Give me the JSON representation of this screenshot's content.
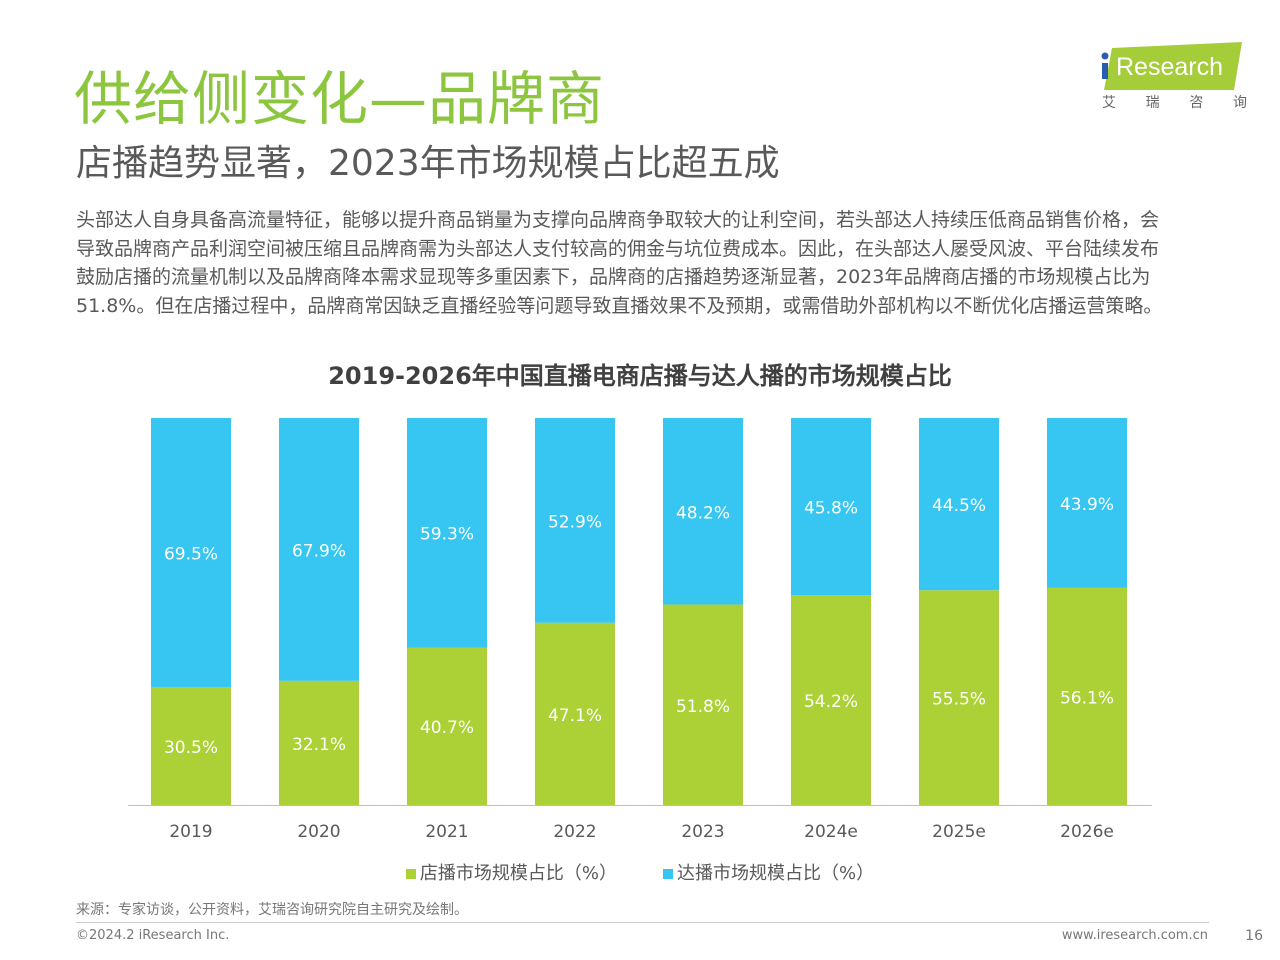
{
  "header": {
    "title": "供给侧变化—品牌商",
    "subtitle": "店播趋势显著，2023年市场规模占比超五成"
  },
  "logo": {
    "text": "iResearch",
    "cn_chars": [
      "艾",
      "瑞",
      "咨",
      "询"
    ]
  },
  "paragraph_lines": [
    "头部达人自身具备高流量特征，能够以提升商品销量为支撑向品牌商争取较大的让利空间，若头部达人持续压低商品销售价格，会",
    "导致品牌商产品利润空间被压缩且品牌商需为头部达人支付较高的佣金与坑位费成本。因此，在头部达人屡受风波、平台陆续发布",
    "鼓励店播的流量机制以及品牌商降本需求显现等多重因素下，品牌商的店播趋势逐渐显著，2023年品牌商店播的市场规模占比为",
    "51.8%。但在店播过程中，品牌商常因缺乏直播经验等问题导致直播效果不及预期，或需借助外部机构以不断优化店播运营策略。"
  ],
  "chart_data": {
    "type": "bar",
    "stacked": true,
    "title": "2019-2026年中国直播电商店播与达人播的市场规模占比",
    "categories": [
      "2019",
      "2020",
      "2021",
      "2022",
      "2023",
      "2024e",
      "2025e",
      "2026e"
    ],
    "series": [
      {
        "name": "店播市场规模占比（%）",
        "color": "#acd136",
        "values": [
          30.5,
          32.1,
          40.7,
          47.1,
          51.8,
          54.2,
          55.5,
          56.1
        ]
      },
      {
        "name": "达播市场规模占比（%）",
        "color": "#36c6f1",
        "values": [
          69.5,
          67.9,
          59.3,
          52.9,
          48.2,
          45.8,
          44.5,
          43.9
        ]
      }
    ],
    "ylim": [
      0,
      100
    ],
    "grid": false,
    "legend": "bottom"
  },
  "footer": {
    "source": "来源：专家访谈，公开资料，艾瑞咨询研究院自主研究及绘制。",
    "copyright": "©2024.2 iResearch Inc.",
    "url": "www.iresearch.com.cn",
    "page": "16"
  }
}
